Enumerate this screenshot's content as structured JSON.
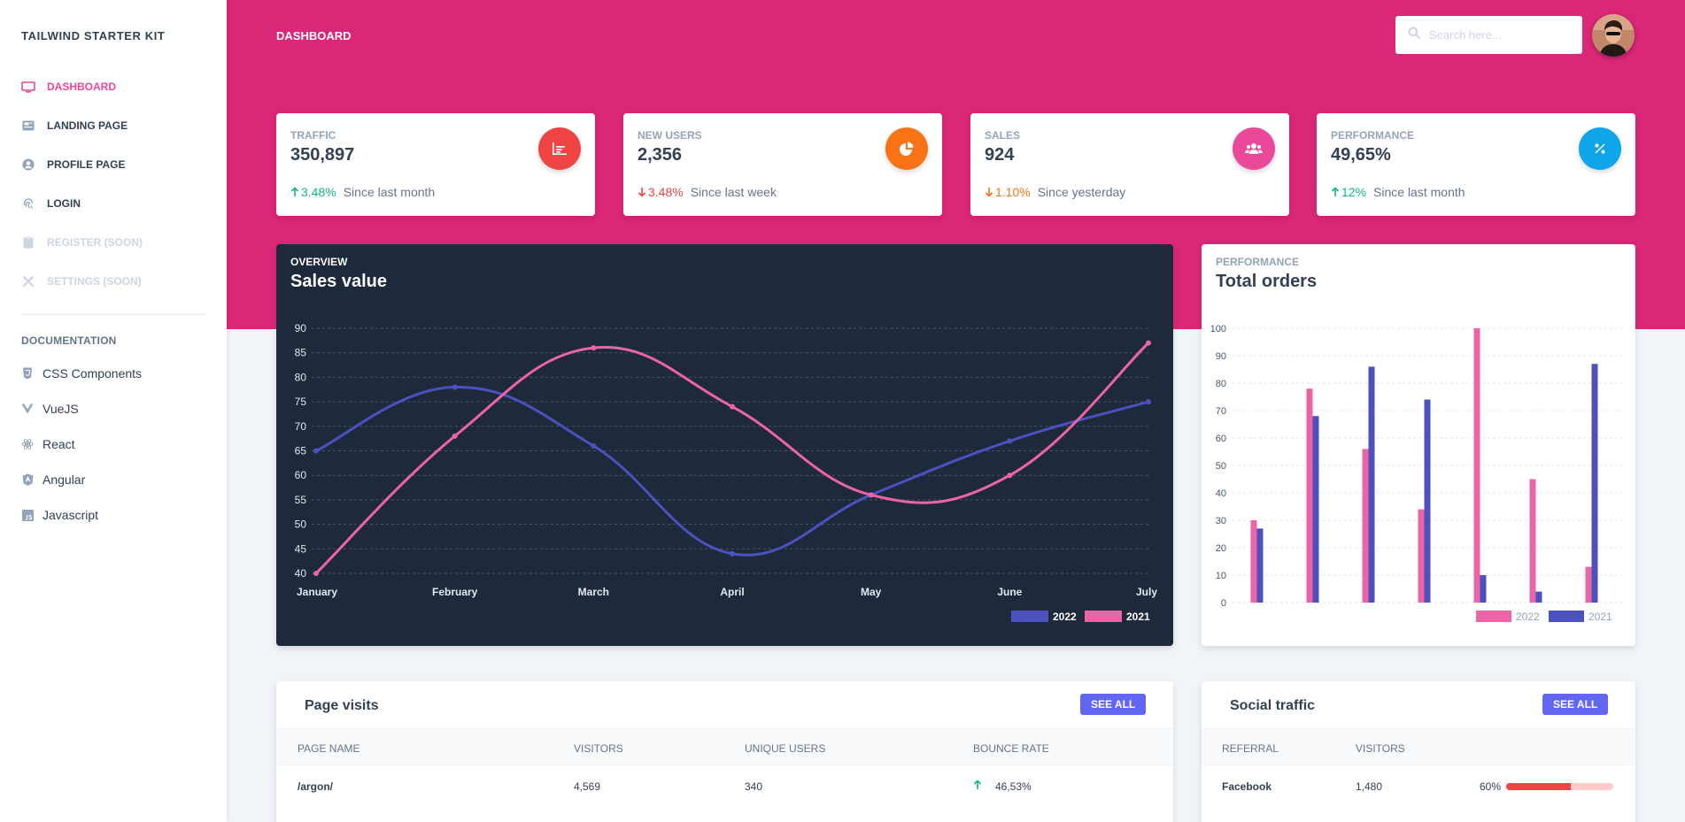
{
  "sidebar": {
    "brand": "TAILWIND STARTER KIT",
    "items": [
      {
        "label": "DASHBOARD",
        "icon": "monitor-icon",
        "active": true
      },
      {
        "label": "LANDING PAGE",
        "icon": "newspaper-icon"
      },
      {
        "label": "PROFILE PAGE",
        "icon": "user-circle-icon"
      },
      {
        "label": "LOGIN",
        "icon": "fingerprint-icon"
      },
      {
        "label": "REGISTER (SOON)",
        "icon": "clipboard-icon",
        "disabled": true
      },
      {
        "label": "SETTINGS (SOON)",
        "icon": "tools-icon",
        "disabled": true
      }
    ],
    "docs_title": "DOCUMENTATION",
    "docs": [
      {
        "label": "CSS Components",
        "icon": "css3-icon"
      },
      {
        "label": "VueJS",
        "icon": "vuejs-icon"
      },
      {
        "label": "React",
        "icon": "react-icon"
      },
      {
        "label": "Angular",
        "icon": "angular-icon"
      },
      {
        "label": "Javascript",
        "icon": "javascript-icon"
      }
    ]
  },
  "header": {
    "title": "DASHBOARD",
    "search_placeholder": "Search here..."
  },
  "stats": [
    {
      "label": "TRAFFIC",
      "value": "350,897",
      "delta": "3.48%",
      "direction": "up",
      "since": "Since last month",
      "icon": "chart-bar-icon",
      "color": "#ef4444",
      "delta_color": "#10b981"
    },
    {
      "label": "NEW USERS",
      "value": "2,356",
      "delta": "3.48%",
      "direction": "down",
      "since": "Since last week",
      "icon": "chart-pie-icon",
      "color": "#f97316",
      "delta_color": "#ef4444"
    },
    {
      "label": "SALES",
      "value": "924",
      "delta": "1.10%",
      "direction": "down",
      "since": "Since yesterday",
      "icon": "users-icon",
      "color": "#ec4899",
      "delta_color": "#f97316"
    },
    {
      "label": "PERFORMANCE",
      "value": "49,65%",
      "delta": "12%",
      "direction": "up",
      "since": "Since last month",
      "icon": "percent-icon",
      "color": "#0ea5e9",
      "delta_color": "#10b981"
    }
  ],
  "chart_data": [
    {
      "type": "line",
      "subtitle": "OVERVIEW",
      "title": "Sales value",
      "categories": [
        "January",
        "February",
        "March",
        "April",
        "May",
        "June",
        "July"
      ],
      "series": [
        {
          "name": "2022",
          "values": [
            65,
            78,
            66,
            44,
            56,
            67,
            75
          ],
          "color": "#4c51bf"
        },
        {
          "name": "2021",
          "values": [
            40,
            68,
            86,
            74,
            56,
            60,
            87
          ],
          "color": "#ed64a6"
        }
      ],
      "yticks": [
        40,
        45,
        50,
        55,
        60,
        65,
        70,
        75,
        80,
        85,
        90
      ],
      "ylim": [
        40,
        90
      ],
      "grid": true,
      "legend": "bottom-right"
    },
    {
      "type": "bar",
      "subtitle": "PERFORMANCE",
      "title": "Total orders",
      "categories": [
        "",
        "",
        "",
        "",
        "",
        "",
        ""
      ],
      "series": [
        {
          "name": "2022",
          "values": [
            30,
            78,
            56,
            34,
            100,
            45,
            13
          ],
          "color": "#ed64a6"
        },
        {
          "name": "2021",
          "values": [
            27,
            68,
            86,
            74,
            10,
            4,
            87
          ],
          "color": "#4c51bf"
        }
      ],
      "yticks": [
        0,
        10,
        20,
        30,
        40,
        50,
        60,
        70,
        80,
        90,
        100
      ],
      "ylim": [
        0,
        100
      ],
      "grid": true,
      "legend": "bottom-right"
    }
  ],
  "page_visits": {
    "title": "Page visits",
    "button": "SEE ALL",
    "columns": [
      "PAGE NAME",
      "VISITORS",
      "UNIQUE USERS",
      "BOUNCE RATE"
    ],
    "rows": [
      {
        "page": "/argon/",
        "visitors": "4,569",
        "unique": "340",
        "bounce": "46,53%",
        "direction": "up"
      }
    ]
  },
  "social_traffic": {
    "title": "Social traffic",
    "button": "SEE ALL",
    "columns": [
      "REFERRAL",
      "VISITORS"
    ],
    "rows": [
      {
        "referral": "Facebook",
        "visitors": "1,480",
        "percent": "60%",
        "progress": 0.6,
        "color": "#ef4444"
      }
    ]
  }
}
